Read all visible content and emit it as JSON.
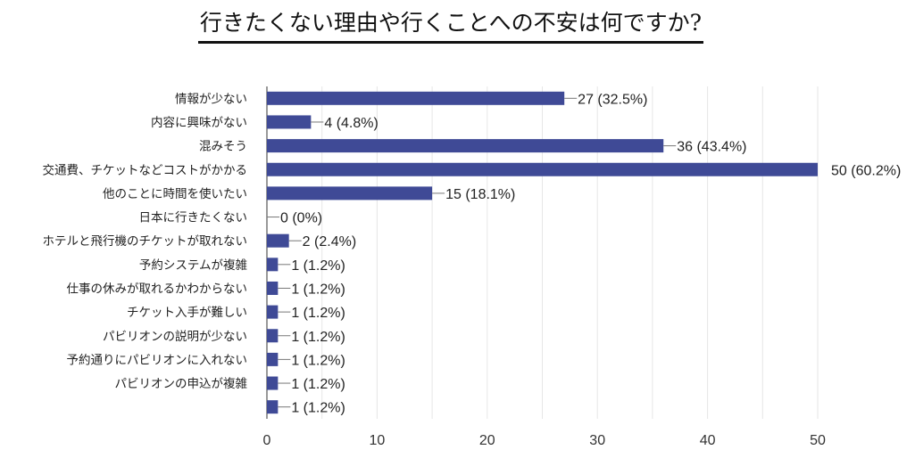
{
  "chart_data": {
    "type": "bar",
    "orientation": "horizontal",
    "title": "行きたくない理由や行くことへの不安は何ですか?",
    "categories": [
      "情報が少ない",
      "内容に興味がない",
      "混みそう",
      "交通費、チケットなどコストがかかる",
      "他のことに時間を使いたい",
      "日本に行きたくない",
      "ホテルと飛行機のチケットが取れない",
      "予約システムが複雑",
      "仕事の休みが取れるかわからない",
      "チケット入手が難しい",
      "パビリオンの説明が少ない",
      "予約通りにパビリオンに入れない",
      "パビリオンの申込が複雑",
      ""
    ],
    "values": [
      27,
      4,
      36,
      50,
      15,
      0,
      2,
      1,
      1,
      1,
      1,
      1,
      1,
      1
    ],
    "labels": [
      "27 (32.5%)",
      "4 (4.8%)",
      "36 (43.4%)",
      "50 (60.2%)",
      "15 (18.1%)",
      "0 (0%)",
      "2 (2.4%)",
      "1 (1.2%)",
      "1 (1.2%)",
      "1 (1.2%)",
      "1 (1.2%)",
      "1 (1.2%)",
      "1 (1.2%)",
      "1 (1.2%)"
    ],
    "xlim": [
      0,
      50
    ],
    "xticks": [
      "0",
      "10",
      "20",
      "30",
      "40",
      "50"
    ],
    "grid": true,
    "xlabel": "",
    "ylabel": "",
    "colors": {
      "bar": "#3f4a96",
      "grid": "#e6e6e6"
    }
  }
}
